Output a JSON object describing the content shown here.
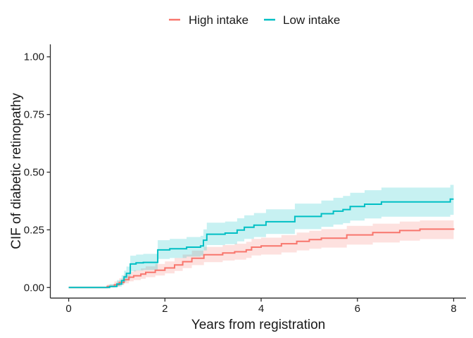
{
  "figure": {
    "background": "#ffffff",
    "text_color": "#1a1a1a",
    "axis_color": "#2b2b2b"
  },
  "legend": {
    "position": "top-center",
    "items": [
      {
        "label": "High intake",
        "color": "#F8766D"
      },
      {
        "label": "Low intake",
        "color": "#00BFC4"
      }
    ]
  },
  "chart_data": {
    "type": "line",
    "subtype": "cumulative-incidence-step-curves-with-confidence-bands",
    "title": "",
    "xlabel": "Years from registration",
    "ylabel": "CIF of diabetic retinopathy",
    "xlim": [
      0,
      8
    ],
    "ylim": [
      0,
      1
    ],
    "grid": false,
    "legend_position": "top",
    "band_opacity": 0.22,
    "x_ticks": [
      {
        "value": 0,
        "label": "0"
      },
      {
        "value": 2,
        "label": "2"
      },
      {
        "value": 4,
        "label": "4"
      },
      {
        "value": 6,
        "label": "6"
      },
      {
        "value": 8,
        "label": "8"
      }
    ],
    "y_ticks": [
      {
        "value": 0.0,
        "label": "0.00"
      },
      {
        "value": 0.25,
        "label": "0.25"
      },
      {
        "value": 0.5,
        "label": "0.50"
      },
      {
        "value": 0.75,
        "label": "0.75"
      },
      {
        "value": 1.0,
        "label": "1.00"
      }
    ],
    "series_note": "points are [years, estimate, ci_lower, ci_upper]; step function (value holds until next time)",
    "series": [
      {
        "name": "High intake",
        "color": "#F8766D",
        "points": [
          [
            0.0,
            0.0,
            0.0,
            0.0
          ],
          [
            0.8,
            0.005,
            0.0,
            0.013
          ],
          [
            0.95,
            0.012,
            0.004,
            0.026
          ],
          [
            1.05,
            0.022,
            0.01,
            0.04
          ],
          [
            1.15,
            0.034,
            0.018,
            0.055
          ],
          [
            1.25,
            0.045,
            0.027,
            0.068
          ],
          [
            1.35,
            0.051,
            0.032,
            0.075
          ],
          [
            1.5,
            0.058,
            0.038,
            0.083
          ],
          [
            1.6,
            0.066,
            0.045,
            0.092
          ],
          [
            1.8,
            0.075,
            0.052,
            0.102
          ],
          [
            2.0,
            0.085,
            0.061,
            0.113
          ],
          [
            2.2,
            0.098,
            0.072,
            0.128
          ],
          [
            2.37,
            0.112,
            0.084,
            0.143
          ],
          [
            2.56,
            0.127,
            0.097,
            0.16
          ],
          [
            2.81,
            0.142,
            0.11,
            0.176
          ],
          [
            3.2,
            0.15,
            0.117,
            0.184
          ],
          [
            3.45,
            0.155,
            0.121,
            0.19
          ],
          [
            3.69,
            0.163,
            0.128,
            0.198
          ],
          [
            3.8,
            0.175,
            0.139,
            0.211
          ],
          [
            4.0,
            0.18,
            0.143,
            0.216
          ],
          [
            4.42,
            0.19,
            0.152,
            0.227
          ],
          [
            4.74,
            0.2,
            0.161,
            0.238
          ],
          [
            5.0,
            0.208,
            0.168,
            0.246
          ],
          [
            5.25,
            0.214,
            0.173,
            0.253
          ],
          [
            5.78,
            0.228,
            0.186,
            0.267
          ],
          [
            6.32,
            0.238,
            0.195,
            0.277
          ],
          [
            6.88,
            0.247,
            0.203,
            0.286
          ],
          [
            7.3,
            0.253,
            0.21,
            0.291
          ],
          [
            8.0,
            0.256,
            0.219,
            0.285
          ]
        ]
      },
      {
        "name": "Low intake",
        "color": "#00BFC4",
        "points": [
          [
            0.0,
            0.0,
            0.0,
            0.0
          ],
          [
            0.85,
            0.005,
            0.0,
            0.015
          ],
          [
            1.0,
            0.015,
            0.004,
            0.032
          ],
          [
            1.1,
            0.03,
            0.013,
            0.053
          ],
          [
            1.15,
            0.046,
            0.024,
            0.073
          ],
          [
            1.2,
            0.061,
            0.036,
            0.091
          ],
          [
            1.28,
            0.102,
            0.07,
            0.138
          ],
          [
            1.4,
            0.107,
            0.074,
            0.143
          ],
          [
            1.55,
            0.109,
            0.076,
            0.146
          ],
          [
            1.85,
            0.163,
            0.124,
            0.205
          ],
          [
            2.1,
            0.168,
            0.128,
            0.211
          ],
          [
            2.45,
            0.175,
            0.134,
            0.219
          ],
          [
            2.74,
            0.18,
            0.138,
            0.224
          ],
          [
            2.8,
            0.205,
            0.161,
            0.252
          ],
          [
            2.87,
            0.231,
            0.184,
            0.281
          ],
          [
            3.25,
            0.236,
            0.188,
            0.286
          ],
          [
            3.5,
            0.249,
            0.2,
            0.3
          ],
          [
            3.65,
            0.261,
            0.211,
            0.313
          ],
          [
            3.85,
            0.27,
            0.219,
            0.323
          ],
          [
            4.1,
            0.285,
            0.232,
            0.339
          ],
          [
            4.7,
            0.308,
            0.253,
            0.364
          ],
          [
            5.25,
            0.32,
            0.263,
            0.377
          ],
          [
            5.5,
            0.331,
            0.273,
            0.389
          ],
          [
            5.7,
            0.338,
            0.279,
            0.397
          ],
          [
            5.85,
            0.351,
            0.29,
            0.411
          ],
          [
            6.15,
            0.361,
            0.299,
            0.422
          ],
          [
            6.5,
            0.371,
            0.307,
            0.433
          ],
          [
            7.93,
            0.383,
            0.315,
            0.445
          ],
          [
            8.0,
            0.383,
            0.315,
            0.445
          ]
        ]
      }
    ]
  }
}
